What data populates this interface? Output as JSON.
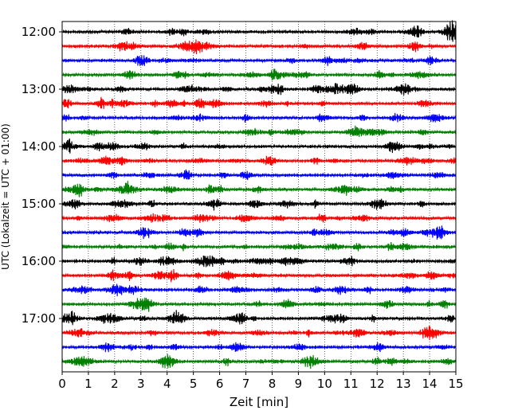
{
  "chart_data": {
    "type": "line",
    "title": "",
    "xlabel": "Zeit  [min]",
    "ylabel": "UTC (Lokalzeit = UTC + 01:00)",
    "xlim": [
      0,
      15
    ],
    "x_ticks": [
      "0",
      "1",
      "2",
      "3",
      "4",
      "5",
      "6",
      "7",
      "8",
      "9",
      "10",
      "11",
      "12",
      "13",
      "14",
      "15"
    ],
    "y_ticks": [
      "12:00",
      "13:00",
      "14:00",
      "15:00",
      "16:00",
      "17:00"
    ],
    "grid": "vertical dotted",
    "trace_interval_minutes": 15,
    "trace_colors": [
      "#000000",
      "#ff0000",
      "#0000ff",
      "#008000"
    ],
    "trace_start_times": [
      "12:00",
      "12:15",
      "12:30",
      "12:45",
      "13:00",
      "13:15",
      "13:30",
      "13:45",
      "14:00",
      "14:15",
      "14:30",
      "14:45",
      "15:00",
      "15:15",
      "15:30",
      "15:45",
      "16:00",
      "16:15",
      "16:30",
      "16:45",
      "17:00",
      "17:15",
      "17:30",
      "17:45"
    ]
  }
}
